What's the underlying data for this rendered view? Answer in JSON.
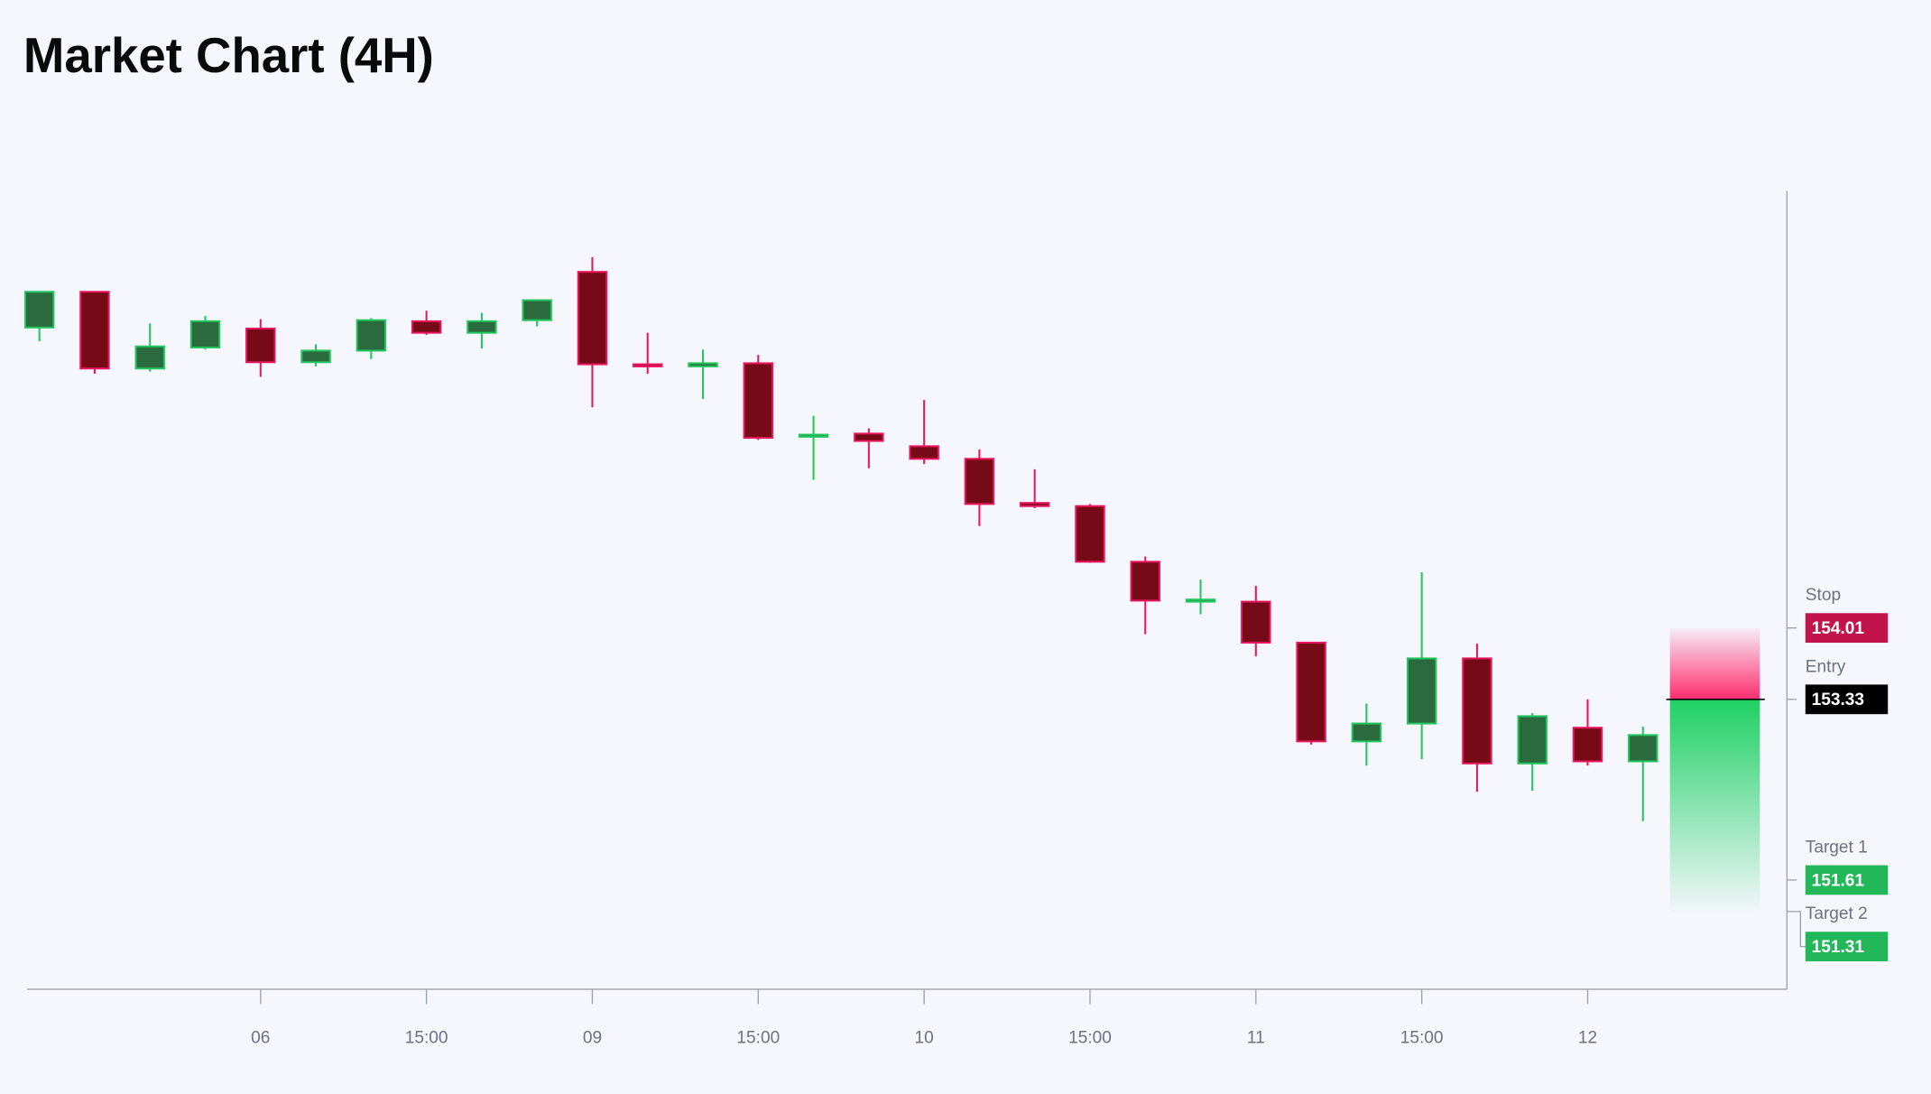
{
  "chart_data": {
    "type": "candlestick",
    "title": "Market Chart (4H)",
    "categories": [
      null,
      null,
      null,
      null,
      "06",
      null,
      null,
      "15:00",
      null,
      null,
      "09",
      null,
      null,
      "15:00",
      null,
      null,
      "10",
      null,
      null,
      "15:00",
      null,
      null,
      "11",
      null,
      null,
      "15:00",
      null,
      null,
      "12",
      null
    ],
    "open": [
      156.87,
      157.21,
      156.48,
      156.68,
      156.86,
      156.54,
      156.65,
      156.93,
      156.82,
      156.94,
      157.4,
      156.52,
      156.5,
      156.53,
      155.83,
      155.86,
      155.74,
      155.62,
      155.2,
      155.17,
      154.64,
      154.26,
      154.26,
      153.87,
      152.93,
      153.1,
      153.72,
      152.72,
      153.06,
      152.74
    ],
    "high": [
      157.21,
      157.21,
      156.91,
      156.98,
      156.95,
      156.71,
      156.96,
      157.03,
      157.01,
      157.13,
      157.54,
      156.82,
      156.66,
      156.61,
      156.03,
      155.91,
      156.18,
      155.71,
      155.52,
      155.19,
      154.69,
      154.47,
      154.41,
      153.87,
      153.29,
      154.54,
      153.86,
      153.2,
      153.33,
      153.07
    ],
    "low": [
      156.74,
      156.43,
      156.45,
      156.66,
      156.4,
      156.5,
      156.57,
      156.8,
      156.67,
      156.88,
      156.11,
      156.43,
      156.19,
      155.8,
      155.42,
      155.53,
      155.57,
      154.98,
      155.15,
      154.63,
      153.95,
      154.14,
      153.74,
      152.9,
      152.7,
      152.76,
      152.45,
      152.46,
      152.7,
      152.17
    ],
    "close": [
      157.21,
      156.48,
      156.69,
      156.93,
      156.54,
      156.65,
      156.94,
      156.82,
      156.93,
      157.13,
      156.52,
      156.5,
      156.53,
      155.82,
      155.85,
      155.79,
      155.62,
      155.19,
      155.17,
      154.64,
      154.27,
      154.28,
      153.87,
      152.93,
      153.1,
      153.72,
      152.72,
      153.17,
      152.74,
      152.99
    ],
    "up_color": "#2a6a3c",
    "up_border": "#22c55e",
    "down_color": "#760b17",
    "down_border": "#e8175d",
    "ylim": [
      150.57,
      158.17
    ],
    "levels": [
      {
        "label": "Stop",
        "value": 154.01,
        "color": "#c2134d"
      },
      {
        "label": "Entry",
        "value": 153.33,
        "color": "#000000"
      },
      {
        "label": "Target 1",
        "value": 151.61,
        "color": "#22b85a"
      },
      {
        "label": "Target 2",
        "value": 151.31,
        "color": "#22b85a"
      }
    ]
  }
}
